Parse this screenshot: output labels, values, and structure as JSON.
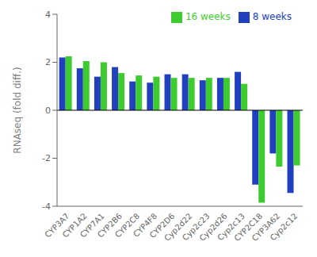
{
  "chart_data": {
    "type": "bar",
    "categories": [
      "CYP3A7",
      "CYP1A2",
      "CYP7A1",
      "CYP2B6",
      "CYP2C8",
      "CYP4F8",
      "CYP2D6",
      "Cyp2d22",
      "Cyp2c23",
      "Cyp2d26",
      "Cyp2c13",
      "CYP2C18",
      "CYP3A62",
      "Cyp2c12"
    ],
    "series": [
      {
        "name": "8 weeks",
        "color": "#2040c0",
        "values": [
          2.2,
          1.75,
          1.4,
          1.8,
          1.2,
          1.15,
          1.5,
          1.5,
          1.25,
          1.35,
          1.6,
          -3.1,
          -1.8,
          -3.45
        ]
      },
      {
        "name": "16 weeks",
        "color": "#3ecb30",
        "values": [
          2.25,
          2.05,
          2.0,
          1.55,
          1.45,
          1.4,
          1.35,
          1.35,
          1.35,
          1.35,
          1.1,
          -3.85,
          -2.35,
          -2.3
        ]
      }
    ],
    "ylabel": "RNAseq (fold diff.)",
    "ylim": [
      -4,
      4
    ],
    "yticks": [
      -4,
      -2,
      0,
      2,
      4
    ],
    "legend": "upper right",
    "grid": false
  }
}
